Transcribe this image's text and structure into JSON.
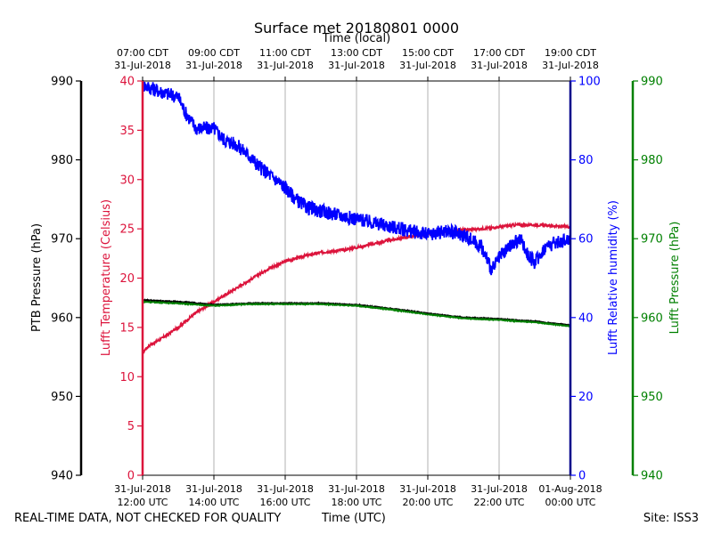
{
  "chart_data": {
    "type": "line",
    "title": "Surface met 20180801 0000",
    "top_axis_label": "Time (local)",
    "xlabel": "Time (UTC)",
    "x_range_hours_utc": [
      12,
      24
    ],
    "x_ticks_utc": [
      {
        "hour": 12,
        "date": "31-Jul-2018",
        "time": "12:00 UTC"
      },
      {
        "hour": 14,
        "date": "31-Jul-2018",
        "time": "14:00 UTC"
      },
      {
        "hour": 16,
        "date": "31-Jul-2018",
        "time": "16:00 UTC"
      },
      {
        "hour": 18,
        "date": "31-Jul-2018",
        "time": "18:00 UTC"
      },
      {
        "hour": 20,
        "date": "31-Jul-2018",
        "time": "20:00 UTC"
      },
      {
        "hour": 22,
        "date": "31-Jul-2018",
        "time": "22:00 UTC"
      },
      {
        "hour": 24,
        "date": "01-Aug-2018",
        "time": "00:00 UTC"
      }
    ],
    "x_ticks_local": [
      {
        "hour": 12,
        "time": "07:00 CDT",
        "date": "31-Jul-2018"
      },
      {
        "hour": 14,
        "time": "09:00 CDT",
        "date": "31-Jul-2018"
      },
      {
        "hour": 16,
        "time": "11:00 CDT",
        "date": "31-Jul-2018"
      },
      {
        "hour": 18,
        "time": "13:00 CDT",
        "date": "31-Jul-2018"
      },
      {
        "hour": 20,
        "time": "15:00 CDT",
        "date": "31-Jul-2018"
      },
      {
        "hour": 22,
        "time": "17:00 CDT",
        "date": "31-Jul-2018"
      },
      {
        "hour": 24,
        "time": "19:00 CDT",
        "date": "31-Jul-2018"
      }
    ],
    "axes": {
      "ptb_pressure": {
        "label": "PTB Pressure (hPa)",
        "ylim": [
          940,
          990
        ],
        "ticks": [
          940,
          950,
          960,
          970,
          980,
          990
        ],
        "color": "#000000"
      },
      "temperature": {
        "label": "Lufft Temperature (Celsius)",
        "ylim": [
          0,
          40
        ],
        "ticks": [
          0,
          5,
          10,
          15,
          20,
          25,
          30,
          35,
          40
        ],
        "color": "#dc143c"
      },
      "humidity": {
        "label": "Lufft Relative humidity (%)",
        "ylim": [
          0,
          100
        ],
        "ticks": [
          0,
          20,
          40,
          60,
          80,
          100
        ],
        "color": "#0000ff"
      },
      "lufft_pressure": {
        "label": "Lufft Pressure (hPa)",
        "ylim": [
          940,
          990
        ],
        "ticks": [
          940,
          950,
          960,
          970,
          980,
          990
        ],
        "color": "#008000"
      }
    },
    "series": [
      {
        "name": "Lufft Temperature",
        "axis": "temperature",
        "color": "#dc143c",
        "x": [
          12,
          12.2,
          12.5,
          13,
          13.5,
          14,
          14.5,
          15,
          15.5,
          16,
          16.5,
          17,
          17.5,
          18,
          18.5,
          19,
          19.5,
          20,
          20.5,
          21,
          21.5,
          22,
          22.5,
          23,
          23.5,
          24
        ],
        "values": [
          12.5,
          13.2,
          13.8,
          15.0,
          16.5,
          17.6,
          18.7,
          19.8,
          20.9,
          21.7,
          22.2,
          22.6,
          22.8,
          23.1,
          23.5,
          23.9,
          24.2,
          24.5,
          24.7,
          24.9,
          25.0,
          25.2,
          25.4,
          25.4,
          25.3,
          25.2
        ]
      },
      {
        "name": "Lufft Relative humidity",
        "axis": "humidity",
        "color": "#0000ff",
        "x": [
          12,
          12.3,
          12.6,
          13,
          13.2,
          13.5,
          14,
          14.3,
          14.6,
          15,
          15.3,
          15.6,
          16,
          16.3,
          16.6,
          17,
          17.5,
          18,
          18.5,
          19,
          19.5,
          20,
          20.5,
          21,
          21.5,
          21.8,
          22,
          22.3,
          22.6,
          22.8,
          23,
          23.3,
          23.6,
          24
        ],
        "values": [
          99,
          98,
          97,
          96,
          92,
          88,
          88,
          85,
          84,
          81,
          78,
          76,
          73,
          70,
          68,
          67,
          66,
          65,
          64,
          63,
          62,
          61,
          62,
          61,
          58,
          52,
          55,
          58,
          60,
          56,
          54,
          58,
          59,
          60
        ]
      },
      {
        "name": "PTB Pressure",
        "axis": "ptb_pressure",
        "color": "#000000",
        "x": [
          12,
          13,
          14,
          15,
          16,
          17,
          18,
          19,
          20,
          21,
          22,
          23,
          24
        ],
        "values": [
          962.2,
          962.0,
          961.6,
          961.8,
          961.8,
          961.8,
          961.6,
          961.1,
          960.5,
          960.0,
          959.8,
          959.5,
          959.0
        ]
      },
      {
        "name": "Lufft Pressure",
        "axis": "lufft_pressure",
        "color": "#008000",
        "x": [
          12,
          13,
          14,
          15,
          16,
          17,
          18,
          19,
          20,
          21,
          22,
          23,
          24
        ],
        "values": [
          962.0,
          961.8,
          961.5,
          961.7,
          961.7,
          961.7,
          961.5,
          961.0,
          960.4,
          959.9,
          959.7,
          959.4,
          958.9
        ]
      }
    ]
  },
  "footer": {
    "disclaimer": "REAL-TIME DATA, NOT CHECKED FOR QUALITY",
    "site": "Site: ISS3"
  }
}
